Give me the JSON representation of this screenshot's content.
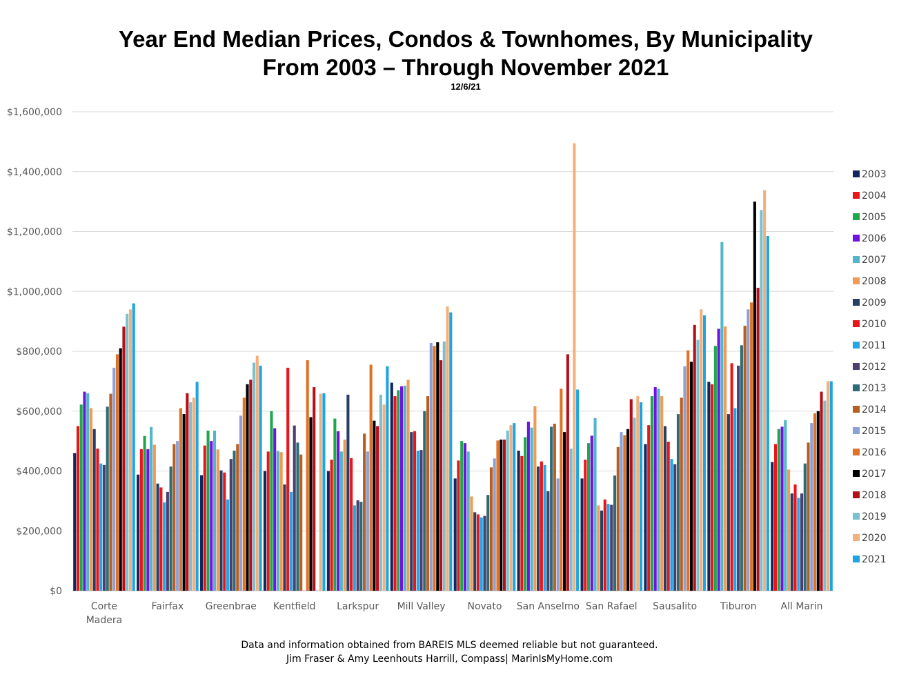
{
  "chart_data": {
    "type": "bar",
    "title": "Year End Median Prices, Condos & Townhomes, By Municipality",
    "subtitle": "From 2003 – Through November 2021",
    "date_note": "12/6/21",
    "ylim": [
      0,
      1600000
    ],
    "yticks": [
      0,
      200000,
      400000,
      600000,
      800000,
      1000000,
      1200000,
      1400000,
      1600000
    ],
    "ytick_labels": [
      "$0",
      "$200,000",
      "$400,000",
      "$600,000",
      "$800,000",
      "$1,000,000",
      "$1,200,000",
      "$1,400,000",
      "$1,600,000"
    ],
    "grid": true,
    "legend_position": "right",
    "categories": [
      "Corte Madera",
      "Fairfax",
      "Greenbrae",
      "Kentfield",
      "Larkspur",
      "Mill Valley",
      "Novato",
      "San Anselmo",
      "San Rafael",
      "Sausalito",
      "Tiburon",
      "All Marin"
    ],
    "series": [
      {
        "name": "2003",
        "color": "#12275e",
        "values": [
          460000,
          388000,
          386000,
          400000,
          400000,
          695000,
          375000,
          468000,
          375000,
          490000,
          698000,
          430000
        ]
      },
      {
        "name": "2004",
        "color": "#e8161b",
        "values": [
          550000,
          473000,
          485000,
          465000,
          438000,
          650000,
          435000,
          450000,
          438000,
          553000,
          690000,
          490000
        ]
      },
      {
        "name": "2005",
        "color": "#1ea84a",
        "values": [
          622000,
          517000,
          535000,
          600000,
          575000,
          670000,
          500000,
          513000,
          493000,
          650000,
          818000,
          540000
        ]
      },
      {
        "name": "2006",
        "color": "#6f12e3",
        "values": [
          665000,
          473000,
          500000,
          543000,
          533000,
          683000,
          493000,
          565000,
          518000,
          680000,
          875000,
          548000
        ]
      },
      {
        "name": "2007",
        "color": "#52b6c8",
        "values": [
          660000,
          547000,
          535000,
          467000,
          465000,
          685000,
          465000,
          545000,
          577000,
          675000,
          1165000,
          570000
        ]
      },
      {
        "name": "2008",
        "color": "#f09a55",
        "values": [
          610000,
          488000,
          472000,
          463000,
          505000,
          705000,
          315000,
          617000,
          285000,
          650000,
          883000,
          405000
        ]
      },
      {
        "name": "2009",
        "color": "#253f66",
        "values": [
          540000,
          358000,
          402000,
          355000,
          655000,
          530000,
          262000,
          415000,
          268000,
          550000,
          590000,
          325000
        ]
      },
      {
        "name": "2010",
        "color": "#e8161b",
        "values": [
          475000,
          345000,
          395000,
          745000,
          443000,
          533000,
          255000,
          432000,
          305000,
          498000,
          760000,
          355000
        ]
      },
      {
        "name": "2011",
        "color": "#21a7e6",
        "values": [
          425000,
          295000,
          305000,
          330000,
          285000,
          468000,
          245000,
          420000,
          290000,
          440000,
          610000,
          310000
        ]
      },
      {
        "name": "2012",
        "color": "#4c3f6e",
        "values": [
          420000,
          330000,
          440000,
          552000,
          302000,
          470000,
          250000,
          333000,
          287000,
          423000,
          752000,
          325000
        ]
      },
      {
        "name": "2013",
        "color": "#2e6b78",
        "values": [
          615000,
          415000,
          468000,
          495000,
          297000,
          600000,
          320000,
          548000,
          385000,
          590000,
          820000,
          425000
        ]
      },
      {
        "name": "2014",
        "color": "#b85e1f",
        "values": [
          658000,
          490000,
          490000,
          455000,
          525000,
          650000,
          412000,
          558000,
          480000,
          645000,
          885000,
          495000
        ]
      },
      {
        "name": "2015",
        "color": "#8ba0d6",
        "values": [
          745000,
          500000,
          585000,
          0,
          465000,
          828000,
          442000,
          375000,
          530000,
          750000,
          940000,
          560000
        ]
      },
      {
        "name": "2016",
        "color": "#e07226",
        "values": [
          790000,
          610000,
          645000,
          770000,
          755000,
          818000,
          502000,
          675000,
          520000,
          803000,
          963000,
          593000
        ]
      },
      {
        "name": "2017",
        "color": "#000000",
        "values": [
          810000,
          590000,
          690000,
          580000,
          568000,
          830000,
          505000,
          530000,
          540000,
          765000,
          1300000,
          600000
        ]
      },
      {
        "name": "2018",
        "color": "#b5101a",
        "values": [
          882000,
          660000,
          705000,
          680000,
          550000,
          770000,
          505000,
          790000,
          640000,
          888000,
          1012000,
          665000
        ]
      },
      {
        "name": "2019",
        "color": "#7cc0cf",
        "values": [
          925000,
          630000,
          762000,
          0,
          655000,
          833000,
          535000,
          475000,
          578000,
          838000,
          1272000,
          635000
        ]
      },
      {
        "name": "2020",
        "color": "#f4b07a",
        "values": [
          940000,
          645000,
          785000,
          658000,
          622000,
          950000,
          553000,
          1495000,
          650000,
          940000,
          1338000,
          700000
        ]
      },
      {
        "name": "2021",
        "color": "#1da5e3",
        "values": [
          960000,
          698000,
          752000,
          660000,
          750000,
          930000,
          560000,
          672000,
          630000,
          920000,
          1185000,
          700000
        ]
      }
    ]
  },
  "footer": {
    "line1": "Data and information obtained from BAREIS MLS deemed reliable but not guaranteed.",
    "line2": "Jim Fraser & Amy Leenhouts Harrill, Compass| MarinIsMyHome.com"
  }
}
